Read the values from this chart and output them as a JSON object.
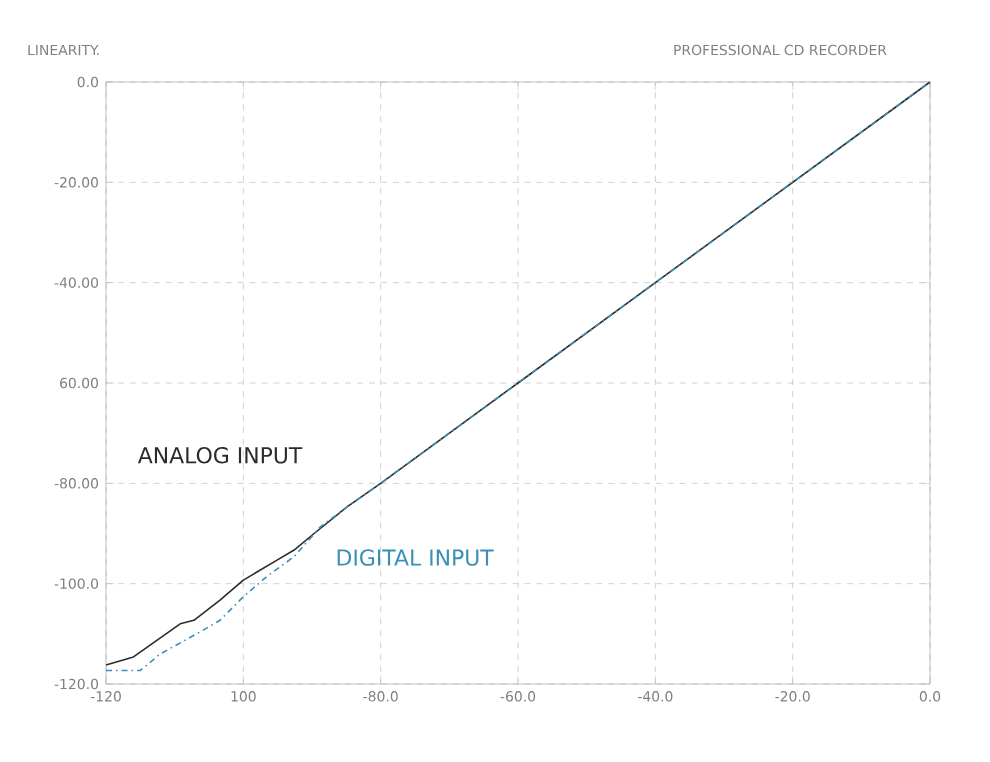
{
  "chart_data": {
    "type": "line",
    "title": "LINEARITY.",
    "subtitle": "PROFESSIONAL CD RECORDER",
    "series": [
      {
        "name": "ANALOG INPUT",
        "color": "#2b2b2b",
        "line_style": "solid",
        "x": [
          -120,
          -116,
          -109.2,
          -107.2,
          -103.4,
          -100,
          -95.1,
          -92.6,
          -89.7,
          -84.9,
          -80,
          -60,
          -40,
          -20,
          0
        ],
        "values": [
          -116.2,
          -114.6,
          -108,
          -107.3,
          -103.3,
          -99.3,
          -95.3,
          -93.3,
          -90,
          -84.7,
          -80,
          -60,
          -40,
          -20,
          0
        ]
      },
      {
        "name": "DIGITAL INPUT",
        "color": "#3a8fb7",
        "line_style": "dashed",
        "x": [
          -120,
          -115,
          -112.1,
          -106.8,
          -103.4,
          -100,
          -96.6,
          -92.6,
          -88.8,
          -84.9,
          -80,
          -60,
          -40,
          -20,
          0
        ],
        "values": [
          -117.3,
          -117.3,
          -114,
          -110,
          -107.3,
          -102.6,
          -98.6,
          -94.6,
          -88.7,
          -84.7,
          -80,
          -60,
          -40,
          -20,
          0
        ]
      }
    ],
    "xlim": [
      -120,
      0
    ],
    "ylim": [
      -120,
      0
    ],
    "xticks": [
      -120,
      {
        "value": -100,
        "label": "100"
      },
      {
        "value": -80,
        "label": "-80.0"
      },
      {
        "value": -60,
        "label": "-60.0"
      },
      {
        "value": -40,
        "label": "-40.0"
      },
      {
        "value": -20,
        "label": "-20.0"
      },
      {
        "value": 0,
        "label": "0.0"
      }
    ],
    "yticks": [
      {
        "value": 0,
        "label": "0.0"
      },
      {
        "value": -20,
        "label": "-20.00"
      },
      {
        "value": -40,
        "label": "-40.00"
      },
      {
        "value": -60,
        "label": "60.00"
      },
      {
        "value": -80,
        "label": "-80.00"
      },
      {
        "value": -100,
        "label": "-100.0"
      },
      {
        "value": -120,
        "label": "-120.0"
      }
    ],
    "grid": true,
    "legend": false,
    "marker": "none"
  }
}
